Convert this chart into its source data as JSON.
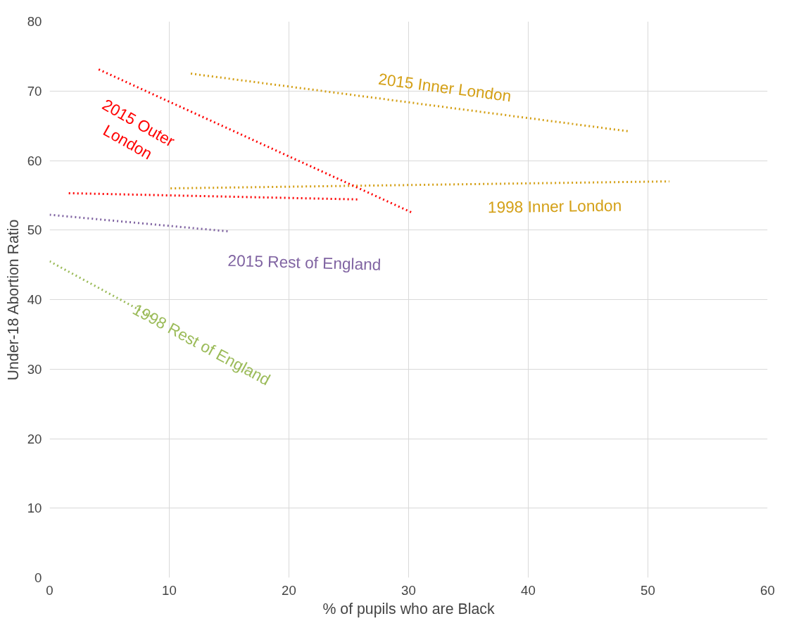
{
  "chart_data": {
    "type": "line",
    "xlabel": "% of pupils who are Black",
    "ylabel": "Under-18 Abortion Ratio",
    "series": [
      {
        "name": "2015 Inner London",
        "color": "#d4a017",
        "x": [
          11.8,
          48.4
        ],
        "values": [
          72.5,
          64.2
        ]
      },
      {
        "name": "1998 Inner London",
        "color": "#d4a017",
        "x": [
          10.1,
          51.8
        ],
        "values": [
          56.0,
          57.0
        ]
      },
      {
        "name": "2015 Outer\nLondon",
        "color": "#ff0000",
        "x": [
          4.1,
          30.3
        ],
        "values": [
          73.1,
          52.5
        ]
      },
      {
        "color": "#ff0000",
        "x": [
          1.6,
          25.9
        ],
        "values": [
          55.3,
          54.4
        ]
      },
      {
        "name": "2015 Rest of England",
        "color": "#8064a2",
        "x": [
          0,
          15.0
        ],
        "values": [
          52.2,
          49.8
        ]
      },
      {
        "name": "1998 Rest of England",
        "color": "#9bbb59",
        "x": [
          0,
          8.7
        ],
        "values": [
          45.5,
          37.4
        ]
      }
    ],
    "xlim": [
      0,
      60
    ],
    "ylim": [
      0,
      80
    ],
    "xticks": [
      0,
      10,
      20,
      30,
      40,
      50,
      60
    ],
    "yticks": [
      0,
      10,
      20,
      30,
      40,
      50,
      60,
      70,
      80
    ],
    "grid": true,
    "marker": "none",
    "line_style": "dotted"
  }
}
